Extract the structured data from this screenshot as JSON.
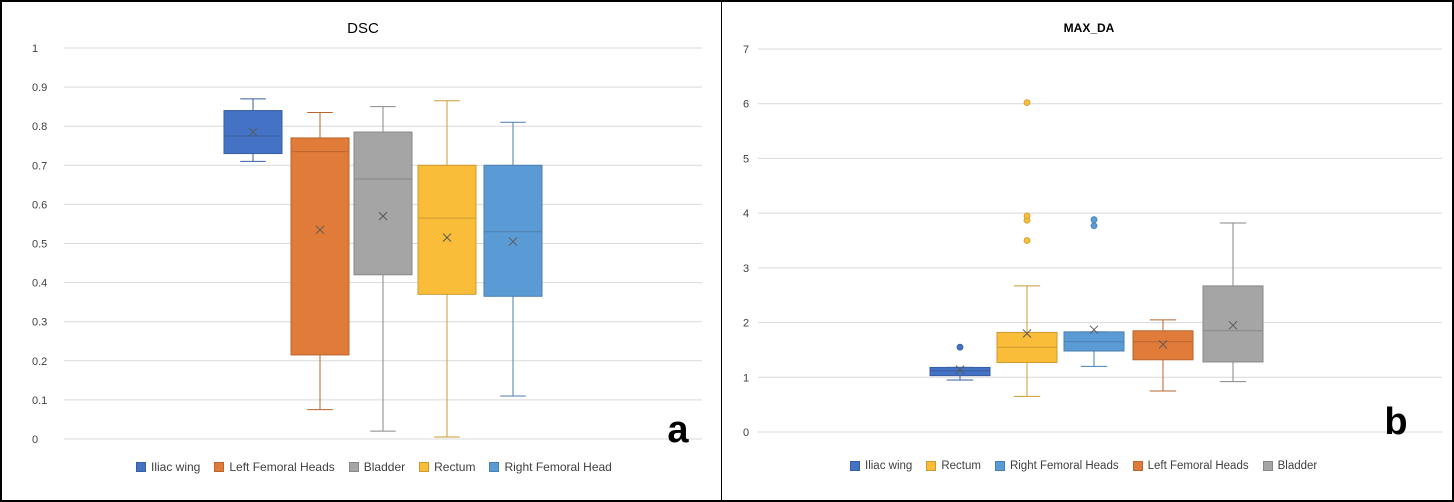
{
  "chart_data": [
    {
      "type": "box",
      "title": "DSC",
      "xlabel": "",
      "ylabel": "",
      "ylim": [
        0,
        1
      ],
      "yticks": [
        "0",
        "0.1",
        "0.2",
        "0.3",
        "0.4",
        "0.5",
        "0.6",
        "0.7",
        "0.8",
        "0.9",
        "1"
      ],
      "grid": true,
      "legend_position": "bottom",
      "panel_label": "a",
      "series": [
        {
          "name": "Iliac wing",
          "color": "#4472C4",
          "min": 0.71,
          "q1": 0.73,
          "median": 0.775,
          "q3": 0.84,
          "max": 0.87,
          "mean": 0.785,
          "outliers": []
        },
        {
          "name": "Left Femoral Heads",
          "color": "#E07B39",
          "min": 0.075,
          "q1": 0.215,
          "median": 0.735,
          "q3": 0.77,
          "max": 0.835,
          "mean": 0.535,
          "outliers": []
        },
        {
          "name": "Bladder",
          "color": "#A5A5A5",
          "min": 0.02,
          "q1": 0.42,
          "median": 0.665,
          "q3": 0.785,
          "max": 0.85,
          "mean": 0.57,
          "outliers": []
        },
        {
          "name": "Rectum",
          "color": "#F9BD3A",
          "min": 0.005,
          "q1": 0.37,
          "median": 0.565,
          "q3": 0.7,
          "max": 0.865,
          "mean": 0.515,
          "outliers": []
        },
        {
          "name": "Right Femoral Head",
          "color": "#5B9BD5",
          "min": 0.11,
          "q1": 0.365,
          "median": 0.53,
          "q3": 0.7,
          "max": 0.81,
          "mean": 0.505,
          "outliers": []
        }
      ]
    },
    {
      "type": "box",
      "title": "MAX_DA",
      "xlabel": "",
      "ylabel": "",
      "ylim": [
        0,
        7
      ],
      "yticks": [
        "0",
        "1",
        "2",
        "3",
        "4",
        "5",
        "6",
        "7"
      ],
      "grid": true,
      "legend_position": "bottom",
      "panel_label": "b",
      "series": [
        {
          "name": "Iliac wing",
          "color": "#4472C4",
          "min": 0.95,
          "q1": 1.03,
          "median": 1.12,
          "q3": 1.18,
          "max": 1.18,
          "mean": 1.14,
          "outliers": [
            1.55
          ]
        },
        {
          "name": "Rectum",
          "color": "#F9BD3A",
          "min": 0.65,
          "q1": 1.27,
          "median": 1.55,
          "q3": 1.82,
          "max": 2.67,
          "mean": 1.8,
          "outliers": [
            3.5,
            3.87,
            3.95,
            6.02
          ]
        },
        {
          "name": "Right Femoral Heads",
          "color": "#5B9BD5",
          "min": 1.2,
          "q1": 1.48,
          "median": 1.65,
          "q3": 1.83,
          "max": 1.83,
          "mean": 1.87,
          "outliers": [
            3.77,
            3.88
          ]
        },
        {
          "name": "Left Femoral Heads",
          "color": "#E07B39",
          "min": 0.75,
          "q1": 1.32,
          "median": 1.65,
          "q3": 1.85,
          "max": 2.05,
          "mean": 1.6,
          "outliers": []
        },
        {
          "name": "Bladder",
          "color": "#A5A5A5",
          "min": 0.92,
          "q1": 1.28,
          "median": 1.85,
          "q3": 2.67,
          "max": 3.82,
          "mean": 1.95,
          "outliers": []
        }
      ]
    }
  ]
}
